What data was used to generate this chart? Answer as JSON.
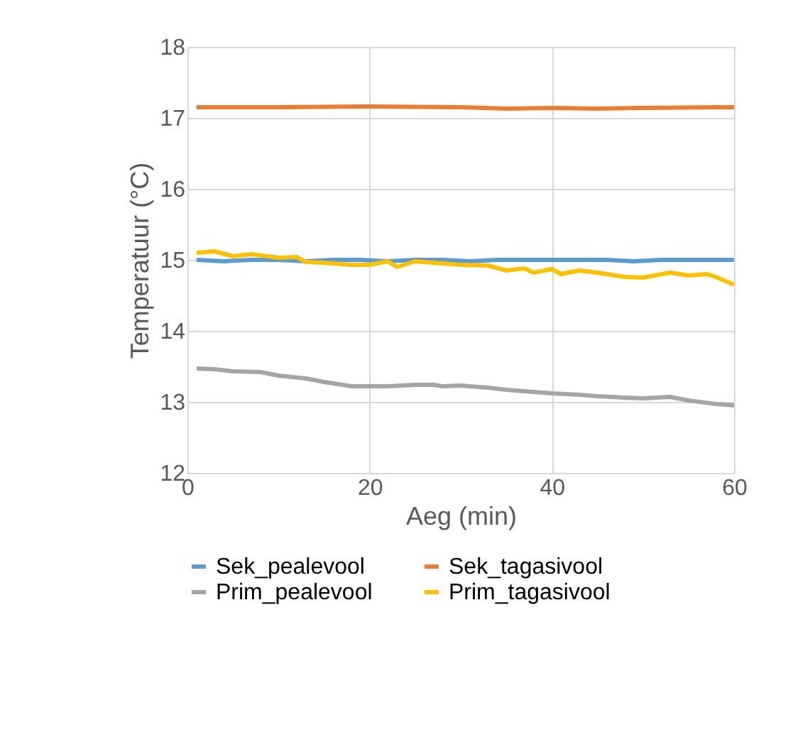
{
  "chart_data": {
    "type": "line",
    "xlabel": "Aeg (min)",
    "ylabel": "Temperatuur (°C)",
    "xlim": [
      0,
      60
    ],
    "xticks": [
      0,
      20,
      40,
      60
    ],
    "ylim": [
      12,
      18
    ],
    "yticks": [
      12,
      13,
      14,
      15,
      16,
      17,
      18
    ],
    "grid": true,
    "legend": "bottom",
    "marker": "none",
    "line_style": "solid",
    "series": [
      {
        "name": "Sek_pealevool",
        "color": "#5b9bd5",
        "x": [
          1,
          4,
          7,
          10,
          13,
          16,
          19,
          22,
          25,
          28,
          31,
          34,
          37,
          40,
          43,
          46,
          49,
          52,
          55,
          58,
          60
        ],
        "values": [
          15.0,
          14.98,
          15.0,
          15.0,
          14.98,
          15.0,
          15.0,
          14.98,
          15.0,
          15.0,
          14.98,
          15.0,
          15.0,
          15.0,
          15.0,
          15.0,
          14.98,
          15.0,
          15.0,
          15.0,
          15.0
        ]
      },
      {
        "name": "Sek_tagasivool",
        "color": "#ed7d31",
        "x": [
          1,
          10,
          20,
          30,
          35,
          40,
          45,
          50,
          60
        ],
        "values": [
          17.15,
          17.15,
          17.16,
          17.15,
          17.13,
          17.14,
          17.13,
          17.14,
          17.15
        ]
      },
      {
        "name": "Prim_pealevool",
        "color": "#a5a5a5",
        "x": [
          1,
          3,
          5,
          8,
          10,
          13,
          15,
          18,
          20,
          22,
          25,
          27,
          28,
          30,
          33,
          35,
          38,
          40,
          43,
          45,
          48,
          50,
          53,
          55,
          58,
          60
        ],
        "values": [
          13.47,
          13.46,
          13.43,
          13.42,
          13.37,
          13.33,
          13.28,
          13.22,
          13.22,
          13.22,
          13.24,
          13.24,
          13.22,
          13.23,
          13.2,
          13.17,
          13.14,
          13.12,
          13.1,
          13.08,
          13.06,
          13.05,
          13.07,
          13.02,
          12.97,
          12.95
        ]
      },
      {
        "name": "Prim_tagasivool",
        "color": "#ffc000",
        "x": [
          1,
          3,
          5,
          7,
          10,
          12,
          13,
          15,
          18,
          20,
          22,
          23,
          25,
          28,
          30,
          33,
          35,
          37,
          38,
          40,
          41,
          43,
          45,
          48,
          50,
          53,
          55,
          57,
          58,
          60
        ],
        "values": [
          15.1,
          15.12,
          15.05,
          15.08,
          15.03,
          15.04,
          14.97,
          14.96,
          14.93,
          14.93,
          14.98,
          14.9,
          14.98,
          14.95,
          14.93,
          14.92,
          14.85,
          14.88,
          14.82,
          14.87,
          14.8,
          14.85,
          14.82,
          14.76,
          14.75,
          14.82,
          14.78,
          14.8,
          14.76,
          14.65
        ]
      }
    ]
  }
}
